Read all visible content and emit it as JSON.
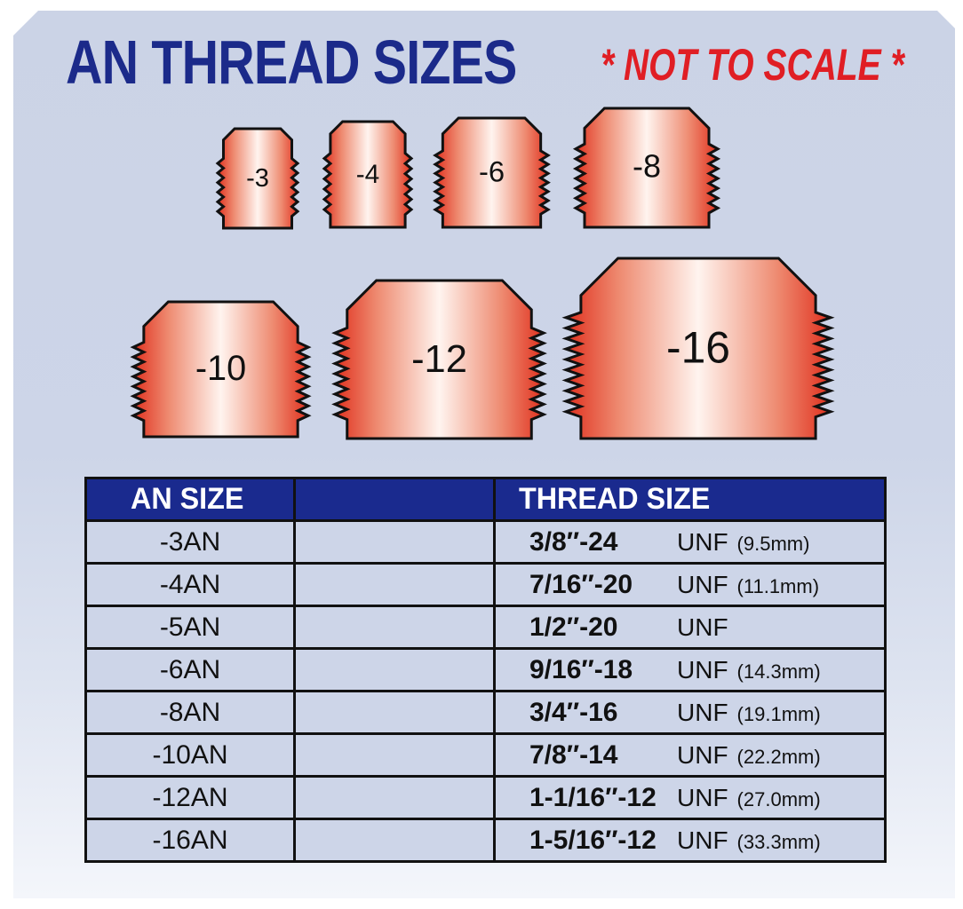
{
  "title": "AN THREAD SIZES",
  "note": "* NOT TO SCALE *",
  "fittings": [
    "-3",
    "-4",
    "-6",
    "-8",
    "-10",
    "-12",
    "-16"
  ],
  "colors": {
    "title": "#1b2a8a",
    "note": "#e01e24",
    "header_bg": "#1a2a8e",
    "copper": "#e8735a"
  },
  "table": {
    "headers": [
      "AN SIZE",
      "",
      "THREAD SIZE"
    ],
    "rows": [
      {
        "an": "-3AN",
        "thread": "3/8″-24",
        "unf": "UNF",
        "mm": "(9.5mm)"
      },
      {
        "an": "-4AN",
        "thread": "7/16″-20",
        "unf": "UNF",
        "mm": "(11.1mm)"
      },
      {
        "an": "-5AN",
        "thread": "1/2″-20",
        "unf": "UNF",
        "mm": ""
      },
      {
        "an": "-6AN",
        "thread": "9/16″-18",
        "unf": "UNF",
        "mm": "(14.3mm)"
      },
      {
        "an": "-8AN",
        "thread": "3/4″-16",
        "unf": "UNF",
        "mm": "(19.1mm)"
      },
      {
        "an": "-10AN",
        "thread": "7/8″-14",
        "unf": "UNF",
        "mm": "(22.2mm)"
      },
      {
        "an": "-12AN",
        "thread": "1-1/16″-12",
        "unf": "UNF",
        "mm": "(27.0mm)"
      },
      {
        "an": "-16AN",
        "thread": "1-5/16″-12",
        "unf": "UNF",
        "mm": "(33.3mm)"
      }
    ]
  }
}
